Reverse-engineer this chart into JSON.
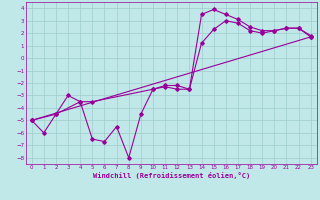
{
  "xlabel": "Windchill (Refroidissement éolien,°C)",
  "background_color": "#c0e8e8",
  "grid_color": "#a0cccc",
  "line_color": "#990099",
  "xlim": [
    -0.5,
    23.5
  ],
  "ylim": [
    -8.5,
    4.5
  ],
  "xticks": [
    0,
    1,
    2,
    3,
    4,
    5,
    6,
    7,
    8,
    9,
    10,
    11,
    12,
    13,
    14,
    15,
    16,
    17,
    18,
    19,
    20,
    21,
    22,
    23
  ],
  "yticks": [
    -8,
    -7,
    -6,
    -5,
    -4,
    -3,
    -2,
    -1,
    0,
    1,
    2,
    3,
    4
  ],
  "line1_x": [
    0,
    1,
    2,
    3,
    4,
    5,
    6,
    7,
    8,
    9,
    10,
    11,
    12,
    13,
    14,
    15,
    16,
    17,
    18,
    19,
    20,
    21,
    22,
    23
  ],
  "line1_y": [
    -5.0,
    -6.0,
    -4.5,
    -3.0,
    -3.5,
    -6.5,
    -6.7,
    -5.5,
    -8.0,
    -4.5,
    -2.5,
    -2.2,
    -2.2,
    -2.5,
    3.5,
    3.9,
    3.5,
    3.1,
    2.5,
    2.2,
    2.2,
    2.4,
    2.4,
    1.7
  ],
  "line2_x": [
    0,
    2,
    4,
    5,
    10,
    11,
    12,
    13,
    14,
    15,
    16,
    17,
    18,
    19,
    20,
    21,
    22,
    23
  ],
  "line2_y": [
    -5.0,
    -4.5,
    -3.5,
    -3.5,
    -2.5,
    -2.3,
    -2.5,
    -2.5,
    1.2,
    2.3,
    3.0,
    2.8,
    2.2,
    2.0,
    2.2,
    2.4,
    2.4,
    1.8
  ],
  "line3_x": [
    0,
    23
  ],
  "line3_y": [
    -5.0,
    1.7
  ]
}
